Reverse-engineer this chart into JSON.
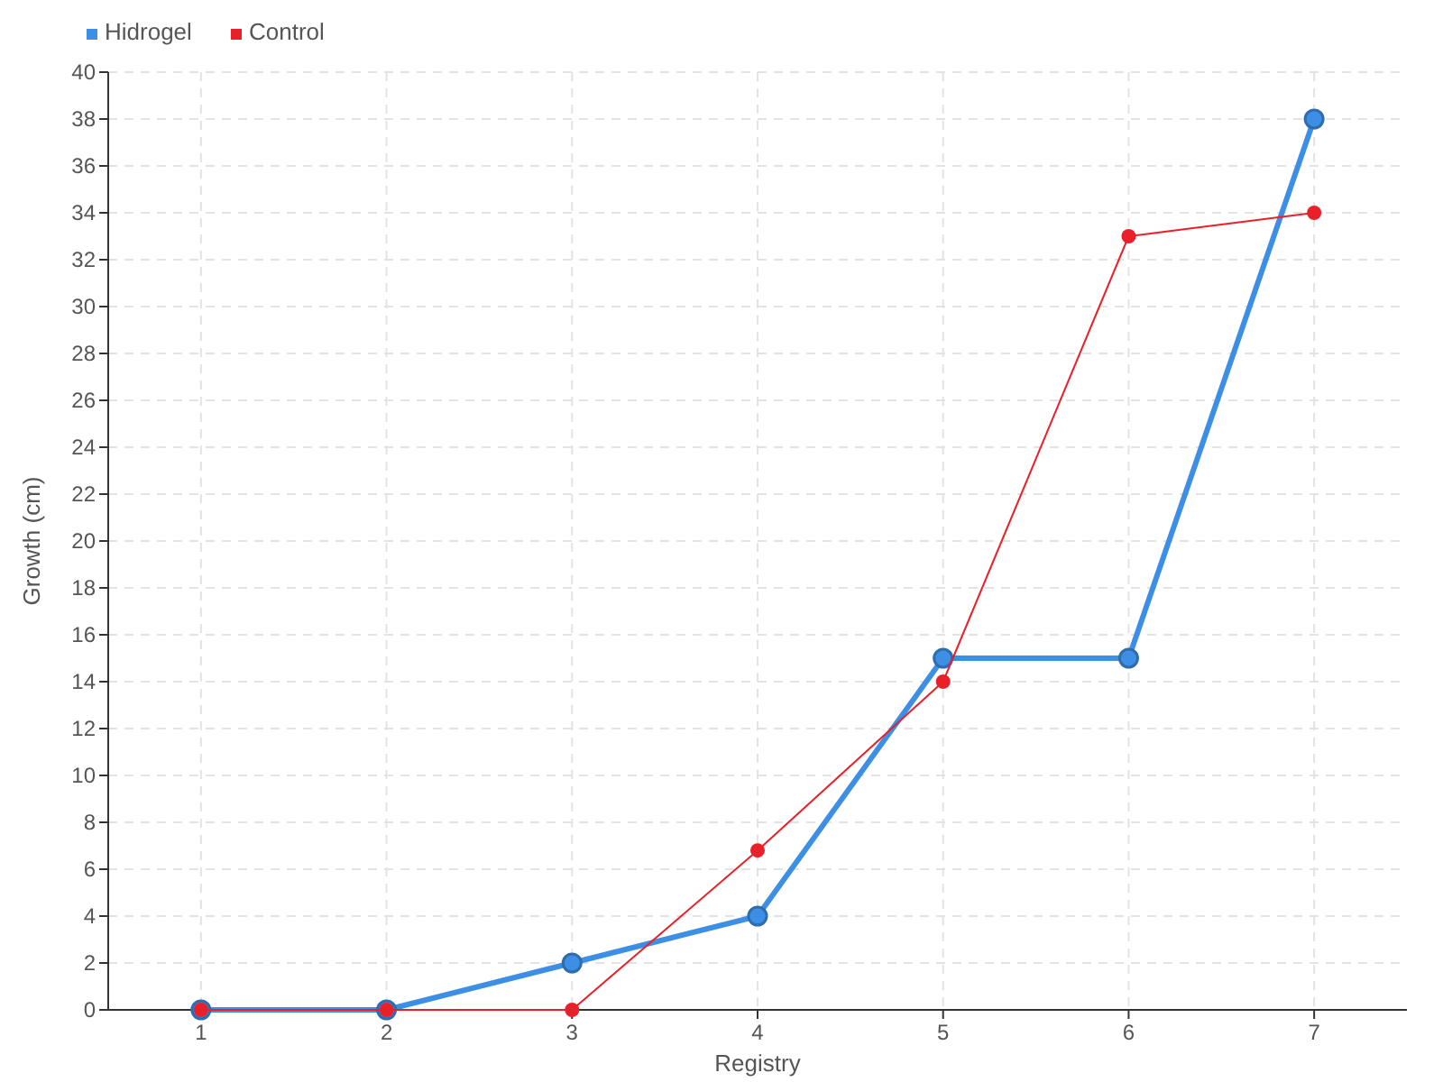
{
  "chart_data": {
    "type": "line",
    "xlabel": "Registry",
    "ylabel": "Growth (cm)",
    "x": [
      1,
      2,
      3,
      4,
      5,
      6,
      7
    ],
    "xlim": [
      0.5,
      7.5
    ],
    "xticks": [
      1,
      2,
      3,
      4,
      5,
      6,
      7
    ],
    "ylim": [
      0,
      40
    ],
    "yticks": [
      0,
      2,
      4,
      6,
      8,
      10,
      12,
      14,
      16,
      18,
      20,
      22,
      24,
      26,
      28,
      30,
      32,
      34,
      36,
      38,
      40
    ],
    "series": [
      {
        "name": "Hidrogel",
        "color": "#3d8fe6",
        "values": [
          0,
          0,
          2,
          4,
          15,
          15,
          38
        ]
      },
      {
        "name": "Control",
        "color": "#e8202a",
        "values": [
          0,
          0,
          0,
          6.8,
          14,
          33,
          34
        ]
      }
    ],
    "grid": true,
    "legend": "top left",
    "marker": "circle",
    "line_style": "solid"
  }
}
